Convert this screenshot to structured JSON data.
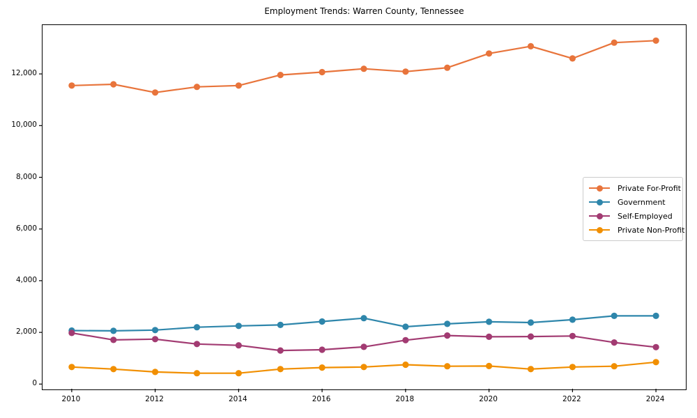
{
  "chart_data": {
    "type": "line",
    "title": "Employment Trends: Warren County, Tennessee",
    "xlabel": "",
    "ylabel": "",
    "x": [
      2010,
      2011,
      2012,
      2013,
      2014,
      2015,
      2016,
      2017,
      2018,
      2019,
      2020,
      2021,
      2022,
      2023,
      2024
    ],
    "series": [
      {
        "name": "Private For-Profit",
        "color": "#E8743B",
        "values": [
          11550,
          11600,
          11280,
          11500,
          11550,
          11960,
          12070,
          12200,
          12090,
          12240,
          12790,
          13070,
          12600,
          13210,
          13290
        ]
      },
      {
        "name": "Government",
        "color": "#2E86AB",
        "values": [
          2070,
          2060,
          2090,
          2200,
          2250,
          2290,
          2420,
          2550,
          2220,
          2330,
          2410,
          2380,
          2490,
          2640,
          2640
        ]
      },
      {
        "name": "Self-Employed",
        "color": "#A23B72",
        "values": [
          1980,
          1710,
          1740,
          1550,
          1500,
          1300,
          1330,
          1440,
          1700,
          1880,
          1830,
          1840,
          1860,
          1610,
          1430
        ]
      },
      {
        "name": "Private Non-Profit",
        "color": "#F18F01",
        "values": [
          660,
          580,
          470,
          420,
          420,
          580,
          640,
          660,
          750,
          690,
          700,
          580,
          660,
          690,
          850
        ]
      }
    ],
    "xlim": [
      2009.3,
      2024.7
    ],
    "ylim": [
      -180,
      13890
    ],
    "xticks": [
      2010,
      2012,
      2014,
      2016,
      2018,
      2020,
      2022,
      2024
    ],
    "xtick_labels": [
      "2010",
      "2012",
      "2014",
      "2016",
      "2018",
      "2020",
      "2022",
      "2024"
    ],
    "yticks": [
      0,
      2000,
      4000,
      6000,
      8000,
      10000,
      12000
    ],
    "ytick_labels": [
      "0",
      "2,000",
      "4,000",
      "6,000",
      "8,000",
      "10,000",
      "12,000"
    ],
    "grid": false,
    "legend_position": "center-right",
    "marker": "circle",
    "background_color": "#ffffff",
    "axis_color": "#000000"
  }
}
